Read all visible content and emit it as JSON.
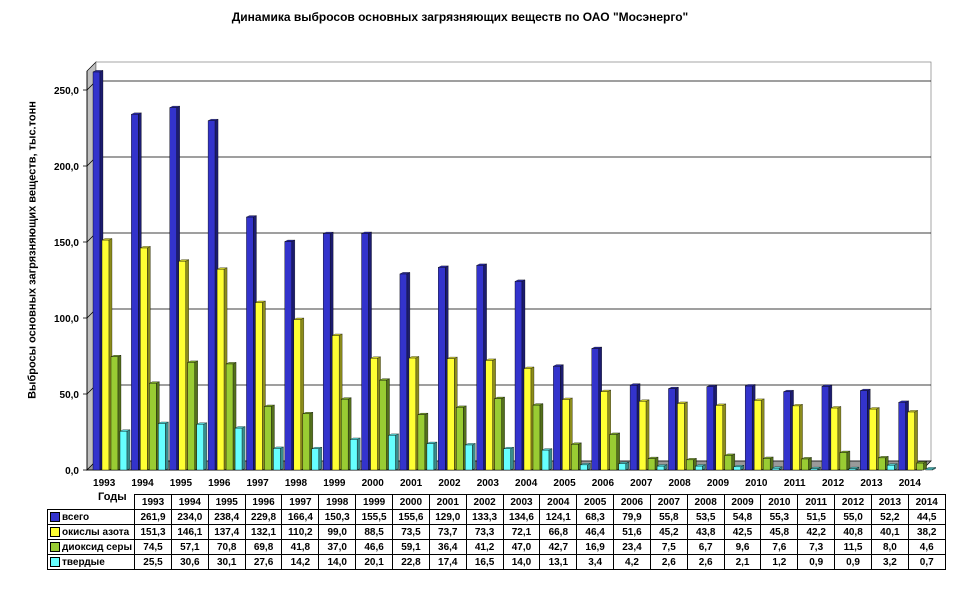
{
  "chart_data": {
    "type": "bar",
    "title": "Динамика выбросов основных загрязняющих веществ по ОАО \"Мосэнерго\"",
    "ylabel": "Выбросы основных загрязняющих веществ, тыс.тонн",
    "xlabel": "Годы",
    "ylim": [
      0,
      250
    ],
    "yticks": [
      "0,0",
      "50,0",
      "100,0",
      "150,0",
      "200,0",
      "250,0"
    ],
    "grid": true,
    "categories": [
      "1993",
      "1994",
      "1995",
      "1996",
      "1997",
      "1998",
      "1999",
      "2000",
      "2001",
      "2002",
      "2003",
      "2004",
      "2005",
      "2006",
      "2007",
      "2008",
      "2009",
      "2010",
      "2011",
      "2012",
      "2013",
      "2014"
    ],
    "series": [
      {
        "name": "всего",
        "color": "#3333cc",
        "values": [
          261.9,
          234.0,
          238.4,
          229.8,
          166.4,
          150.3,
          155.5,
          155.6,
          129.0,
          133.3,
          134.6,
          124.1,
          68.3,
          79.9,
          55.8,
          53.5,
          54.8,
          55.3,
          51.5,
          55.0,
          52.2,
          44.5
        ],
        "labels": [
          "261,9",
          "234,0",
          "238,4",
          "229,8",
          "166,4",
          "150,3",
          "155,5",
          "155,6",
          "129,0",
          "133,3",
          "134,6",
          "124,1",
          "68,3",
          "79,9",
          "55,8",
          "53,5",
          "54,8",
          "55,3",
          "51,5",
          "55,0",
          "52,2",
          "44,5"
        ]
      },
      {
        "name": "окислы азота",
        "color": "#ffff33",
        "values": [
          151.3,
          146.1,
          137.4,
          132.1,
          110.2,
          99.0,
          88.5,
          73.5,
          73.7,
          73.3,
          72.1,
          66.8,
          46.4,
          51.6,
          45.2,
          43.8,
          42.5,
          45.8,
          42.2,
          40.8,
          40.1,
          38.2
        ],
        "labels": [
          "151,3",
          "146,1",
          "137,4",
          "132,1",
          "110,2",
          "99,0",
          "88,5",
          "73,5",
          "73,7",
          "73,3",
          "72,1",
          "66,8",
          "46,4",
          "51,6",
          "45,2",
          "43,8",
          "42,5",
          "45,8",
          "42,2",
          "40,8",
          "40,1",
          "38,2"
        ]
      },
      {
        "name": "диоксид серы",
        "color": "#99cc33",
        "values": [
          74.5,
          57.1,
          70.8,
          69.8,
          41.8,
          37.0,
          46.6,
          59.1,
          36.4,
          41.2,
          47.0,
          42.7,
          16.9,
          23.4,
          7.5,
          6.7,
          9.6,
          7.6,
          7.3,
          11.5,
          8.0,
          4.6
        ],
        "labels": [
          "74,5",
          "57,1",
          "70,8",
          "69,8",
          "41,8",
          "37,0",
          "46,6",
          "59,1",
          "36,4",
          "41,2",
          "47,0",
          "42,7",
          "16,9",
          "23,4",
          "7,5",
          "6,7",
          "9,6",
          "7,6",
          "7,3",
          "11,5",
          "8,0",
          "4,6"
        ]
      },
      {
        "name": "твердые",
        "color": "#66ffff",
        "values": [
          25.5,
          30.6,
          30.1,
          27.6,
          14.2,
          14.0,
          20.1,
          22.8,
          17.4,
          16.5,
          14.0,
          13.1,
          3.4,
          4.2,
          2.6,
          2.6,
          2.1,
          1.2,
          0.9,
          0.9,
          3.2,
          0.7
        ],
        "labels": [
          "25,5",
          "30,6",
          "30,1",
          "27,6",
          "14,2",
          "14,0",
          "20,1",
          "22,8",
          "17,4",
          "16,5",
          "14,0",
          "13,1",
          "3,4",
          "4,2",
          "2,6",
          "2,6",
          "2,1",
          "1,2",
          "0,9",
          "0,9",
          "3,2",
          "0,7"
        ]
      }
    ]
  }
}
